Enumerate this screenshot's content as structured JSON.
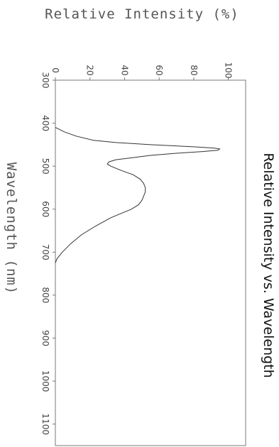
{
  "chart_data": {
    "type": "line",
    "title": "Relative Intensity vs. Wavelength",
    "xlabel": "Wavelength (nm)",
    "ylabel": "Relative Intensity (%)",
    "xlim": [
      300,
      1150
    ],
    "ylim": [
      0,
      110
    ],
    "x_ticks": [
      300,
      400,
      500,
      600,
      700,
      800,
      900,
      1000,
      1100
    ],
    "y_ticks": [
      0,
      20,
      40,
      60,
      80,
      100
    ],
    "grid": false,
    "series": [
      {
        "x": [
          410,
          420,
          430,
          440,
          445,
          450,
          455,
          458,
          460,
          463,
          466,
          470,
          475,
          480,
          485,
          490,
          495,
          500,
          510,
          520,
          530,
          540,
          550,
          560,
          570,
          580,
          590,
          600,
          610,
          620,
          640,
          660,
          680,
          700,
          715,
          725
        ],
        "y": [
          0,
          5,
          12,
          22,
          35,
          55,
          80,
          92,
          95,
          94,
          85,
          70,
          55,
          45,
          35,
          31,
          30,
          32,
          38,
          45,
          49,
          51,
          52,
          52,
          51,
          50,
          48,
          44,
          38,
          32,
          23,
          15,
          9,
          4,
          1,
          0
        ]
      }
    ]
  }
}
